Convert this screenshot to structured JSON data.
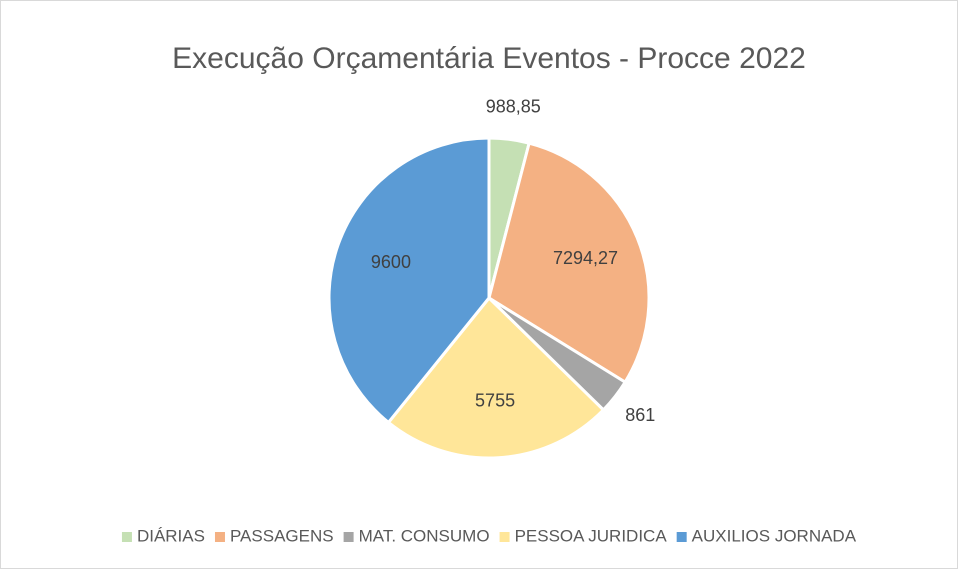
{
  "chart_data": {
    "type": "pie",
    "title": "Execução Orçamentária Eventos - Procce 2022",
    "categories": [
      "DIÁRIAS",
      "PASSAGENS",
      "MAT. CONSUMO",
      "PESSOA JURIDICA",
      "AUXILIOS JORNADA"
    ],
    "values": [
      988.85,
      7294.27,
      861,
      5755,
      9600
    ],
    "value_labels": [
      "988,85",
      "7294,27",
      "861",
      "5755",
      "9600"
    ],
    "colors": [
      "#c5e0b4",
      "#f4b183",
      "#a5a5a5",
      "#ffe699",
      "#5b9bd5"
    ],
    "legend": "bottom"
  }
}
